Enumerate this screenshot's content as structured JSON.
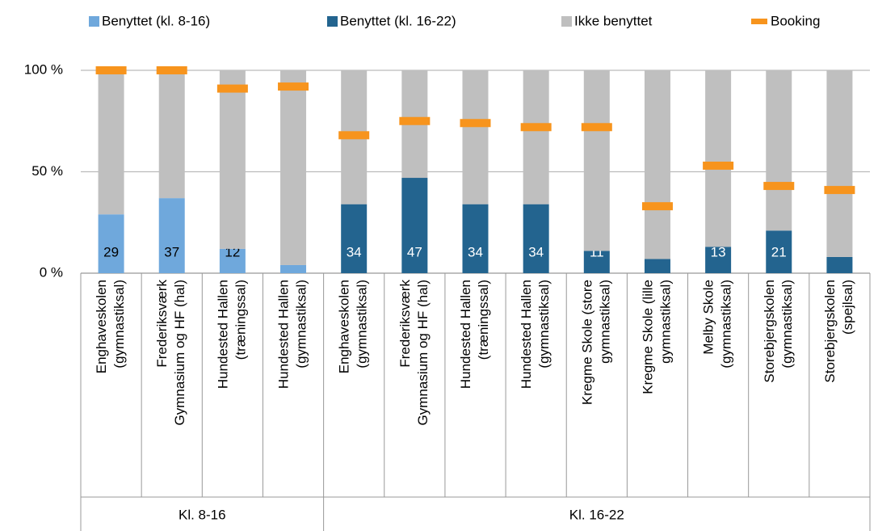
{
  "chart_data": {
    "type": "stacked_bar",
    "groups": [
      {
        "name": "Kl. 8-16",
        "categories": [
          [
            "Enghaveskolen",
            "(gymnastiksal)"
          ],
          [
            "Frederiksværk",
            "Gymnasium og HF (hal)"
          ],
          [
            "Hundested Hallen",
            "(træningssal)"
          ],
          [
            "Hundested Hallen",
            "(gymnastiksal)"
          ]
        ]
      },
      {
        "name": "Kl. 16-22",
        "categories": [
          [
            "Enghaveskolen",
            "(gymnastiksal)"
          ],
          [
            "Frederiksværk",
            "Gymnasium og HF (hal)"
          ],
          [
            "Hundested Hallen",
            "(træningssal)"
          ],
          [
            "Hundested Hallen",
            "(gymnastiksal)"
          ],
          [
            "Kregme Skole (store",
            "gymnastiksal)"
          ],
          [
            "Kregme Skole (lille",
            "gymnastiksal)"
          ],
          [
            "Melby Skole",
            "(gymnastiksal)"
          ],
          [
            "Storebjergskolen",
            "(gymnastiksal)"
          ],
          [
            "Storebjergskolen",
            "(spejlsal)"
          ]
        ]
      }
    ],
    "series": [
      {
        "name": "Benyttet (kl. 8-16)",
        "color": "#6fa8dc",
        "values": [
          29,
          37,
          12,
          4,
          null,
          null,
          null,
          null,
          null,
          null,
          null,
          null,
          null
        ],
        "data_labels": true
      },
      {
        "name": "Benyttet (kl. 16-22)",
        "color": "#23648f",
        "values": [
          null,
          null,
          null,
          null,
          34,
          47,
          34,
          34,
          11,
          7,
          13,
          21,
          8
        ],
        "data_labels": true
      },
      {
        "name": "Ikke benyttet",
        "color": "#bfbfbf",
        "values": [
          71,
          63,
          88,
          96,
          66,
          53,
          66,
          66,
          89,
          93,
          87,
          79,
          92
        ],
        "data_labels": false
      }
    ],
    "booking": {
      "name": "Booking",
      "color": "#f7941d",
      "values": [
        100,
        100,
        91,
        92,
        68,
        75,
        74,
        72,
        72,
        33,
        53,
        43,
        41
      ]
    },
    "ylim": [
      0,
      100
    ],
    "yticks": [
      {
        "value": 0,
        "label": "0 %"
      },
      {
        "value": 50,
        "label": "50 %"
      },
      {
        "value": 100,
        "label": "100 %"
      }
    ],
    "grid": true
  }
}
